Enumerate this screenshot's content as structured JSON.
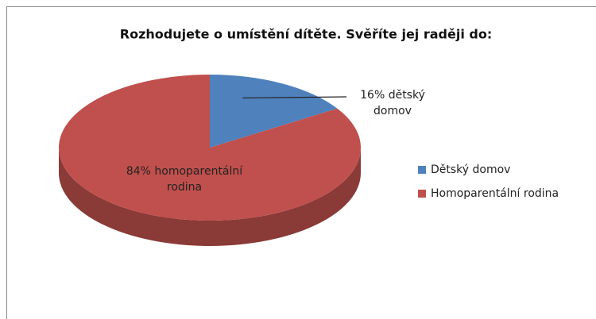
{
  "chart_data": {
    "type": "pie",
    "title": "Rozhodujete o umístění dítěte. Svěříte jej raději do:",
    "categories": [
      "Dětský domov",
      "Homoparentální rodina"
    ],
    "values": [
      16,
      84
    ],
    "value_labels": [
      "16% dětský domov",
      "84% homoparentální rodina"
    ],
    "colors": [
      "#4f81bd",
      "#c0504d"
    ],
    "legend": "right"
  }
}
